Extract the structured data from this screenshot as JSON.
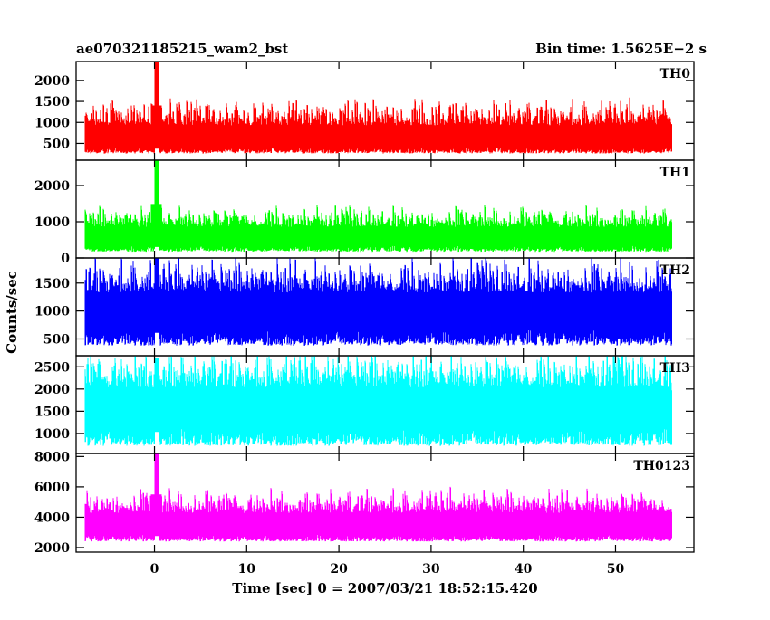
{
  "header": {
    "title": "ae070321185215_wam2_bst",
    "bin_time": "Bin time: 1.5625E−2 s"
  },
  "chart_data": {
    "type": "line",
    "xlabel": "Time [sec] 0 = 2007/03/21 18:52:15.420",
    "ylabel": "Counts/sec",
    "xlim": [
      -8.5,
      58.5
    ],
    "x_ticks": [
      0,
      10,
      20,
      30,
      40,
      50
    ],
    "x_tick_labels": [
      "0",
      "10",
      "20",
      "30",
      "40",
      "50"
    ],
    "data_x_range": [
      -7.5,
      56
    ],
    "bin_time_s": 0.015625,
    "panels": [
      {
        "name": "TH0",
        "color": "#ff0000",
        "ylim": [
          100,
          2450
        ],
        "ticks": [
          500,
          1000,
          1500,
          2000
        ],
        "tick_labels": [
          "500",
          "1000",
          "1500",
          "2000"
        ],
        "baseline": 260,
        "typical_mean": 550,
        "typical_peak": 1400,
        "burst_peak": 2450,
        "burst_time": 0.2
      },
      {
        "name": "TH1",
        "color": "#00ff00",
        "ylim": [
          0,
          2700
        ],
        "ticks": [
          0,
          1000,
          2000
        ],
        "tick_labels": [
          "0",
          "1000",
          "2000"
        ],
        "baseline": 170,
        "typical_mean": 500,
        "typical_peak": 1300,
        "burst_peak": 2700,
        "burst_time": 0.2
      },
      {
        "name": "TH2",
        "color": "#0000ff",
        "ylim": [
          200,
          1950
        ],
        "ticks": [
          500,
          1000,
          1500
        ],
        "tick_labels": [
          "500",
          "1000",
          "1500"
        ],
        "baseline": 380,
        "typical_mean": 950,
        "typical_peak": 1800,
        "burst_peak": 1950,
        "burst_time": 0.2
      },
      {
        "name": "TH3",
        "color": "#00ffff",
        "ylim": [
          550,
          2750
        ],
        "ticks": [
          1000,
          1500,
          2000,
          2500
        ],
        "tick_labels": [
          "1000",
          "1500",
          "2000",
          "2500"
        ],
        "baseline": 720,
        "typical_mean": 1500,
        "typical_peak": 2700,
        "burst_peak": 2700,
        "burst_time": 0.2
      },
      {
        "name": "TH0123",
        "color": "#ff00ff",
        "ylim": [
          1700,
          8200
        ],
        "ticks": [
          2000,
          4000,
          6000,
          8000
        ],
        "tick_labels": [
          "2000",
          "4000",
          "6000",
          "8000"
        ],
        "baseline": 2400,
        "typical_mean": 3300,
        "typical_peak": 5500,
        "burst_peak": 8200,
        "burst_time": 0.2
      }
    ]
  }
}
